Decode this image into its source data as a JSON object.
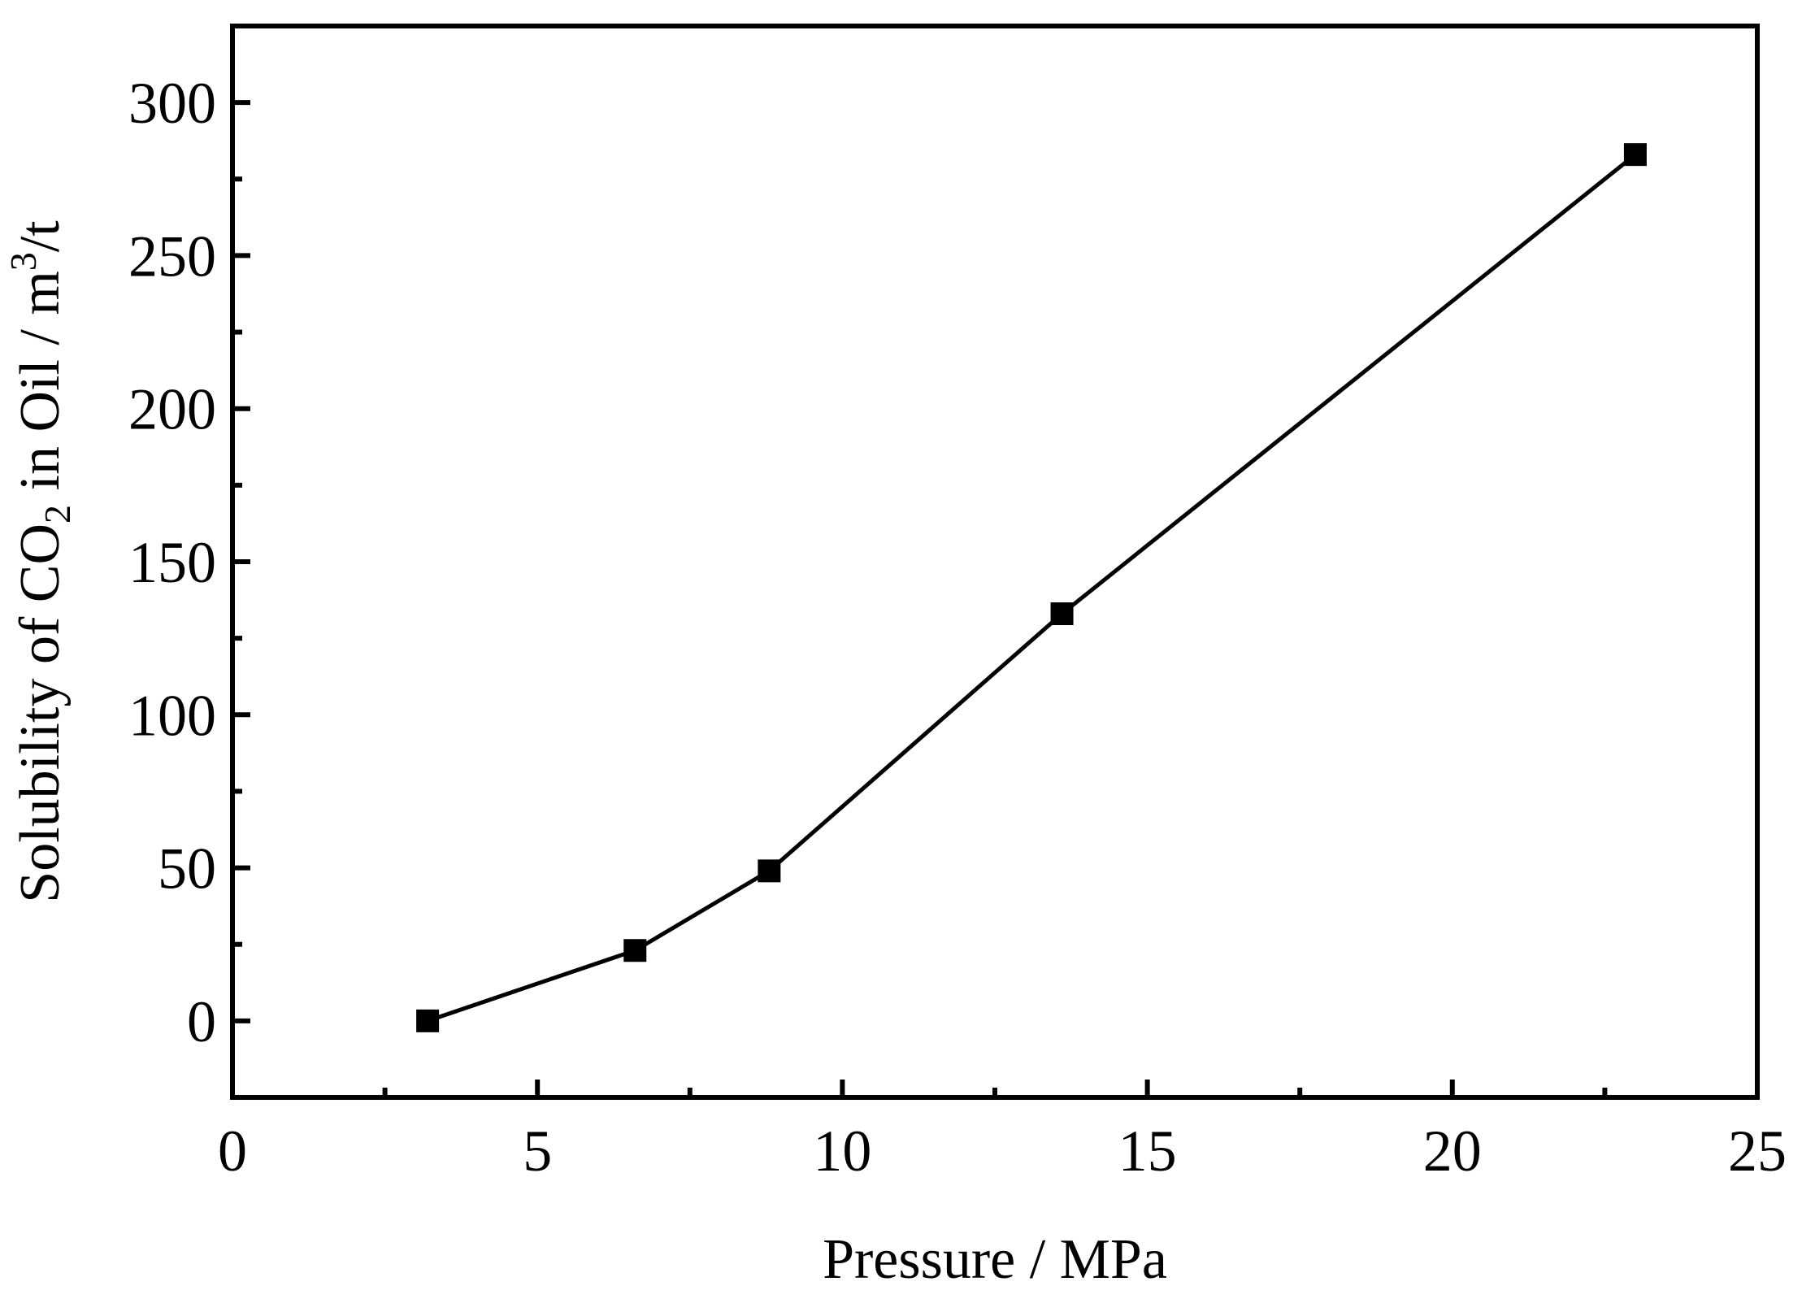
{
  "chart_data": {
    "type": "line",
    "title": "",
    "xlabel": "Pressure / MPa",
    "ylabel": {
      "pre": "Solubility of CO",
      "sub": "2",
      "mid": " in Oil / m",
      "sup": "3",
      "post": "/t"
    },
    "xlim": [
      0,
      25
    ],
    "ylim": [
      -25,
      325
    ],
    "xticks": [
      0,
      5,
      10,
      15,
      20,
      25
    ],
    "xtick_labels": [
      "0",
      "5",
      "10",
      "15",
      "20",
      "25"
    ],
    "yticks": [
      0,
      50,
      100,
      150,
      200,
      250,
      300
    ],
    "ytick_labels": [
      "0",
      "50",
      "100",
      "150",
      "200",
      "250",
      "300"
    ],
    "x_minor_step": 2.5,
    "y_minor_step": 25,
    "grid": false,
    "legend": "none",
    "marker": "square",
    "series": [
      {
        "x": [
          3.2,
          6.6,
          8.8,
          13.6,
          23.0
        ],
        "y": [
          0,
          23,
          49,
          133,
          283
        ]
      }
    ],
    "colors": {
      "line": "#000000",
      "marker": "#000000",
      "axes": "#000000"
    }
  }
}
